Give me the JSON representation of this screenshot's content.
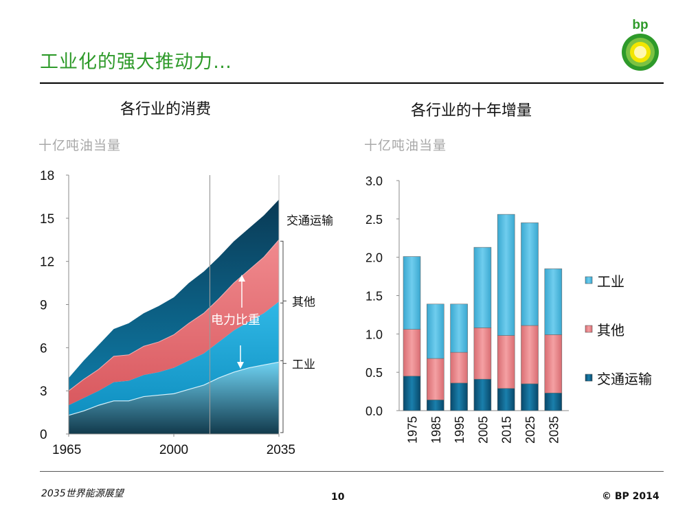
{
  "slide": {
    "title": "工业化的强大推动力…",
    "logo_text": "bp",
    "footer_left": "2035世界能源展望",
    "page_number": "10",
    "copyright": "© BP 2014"
  },
  "colors": {
    "title_green": "#2e9a2a",
    "industry": "#5bc4e8",
    "other": "#e37b80",
    "transport": "#0d5f82"
  },
  "chart_data": [
    {
      "type": "area",
      "stacked": true,
      "title": "各行业的消费",
      "ylabel": "十亿吨油当量",
      "x": [
        1965,
        1970,
        1975,
        1980,
        1985,
        1990,
        1995,
        2000,
        2005,
        2010,
        2015,
        2020,
        2025,
        2030,
        2035
      ],
      "xticks": [
        "1965",
        "2000",
        "2035"
      ],
      "xtick_values": [
        1965,
        2000,
        2035
      ],
      "yticks": [
        "0",
        "3",
        "6",
        "9",
        "12",
        "15",
        "18"
      ],
      "ylim": [
        0,
        18
      ],
      "divider_year": 2012,
      "series": [
        {
          "name": "工业",
          "values": [
            1.3,
            1.6,
            2.0,
            2.3,
            2.3,
            2.6,
            2.7,
            2.8,
            3.1,
            3.4,
            3.9,
            4.3,
            4.6,
            4.8,
            5.0
          ]
        },
        {
          "name": "电力比重",
          "values": [
            0.7,
            0.9,
            1.0,
            1.3,
            1.4,
            1.5,
            1.6,
            1.8,
            2.0,
            2.2,
            2.5,
            2.9,
            3.2,
            3.6,
            4.2
          ]
        },
        {
          "name": "其他",
          "values": [
            1.0,
            1.3,
            1.5,
            1.8,
            1.8,
            2.0,
            2.1,
            2.3,
            2.6,
            2.8,
            3.0,
            3.3,
            3.6,
            3.9,
            4.3
          ]
        },
        {
          "name": "交通运输",
          "values": [
            0.9,
            1.3,
            1.7,
            1.9,
            2.2,
            2.3,
            2.5,
            2.6,
            2.8,
            2.9,
            2.9,
            2.9,
            2.9,
            2.9,
            2.8
          ]
        }
      ],
      "right_labels": [
        "交通运输",
        "其他",
        "工业"
      ],
      "annotation": "电力比重"
    },
    {
      "type": "bar",
      "stacked": true,
      "title": "各行业的十年增量",
      "ylabel": "十亿吨油当量",
      "categories": [
        "1975",
        "1985",
        "1995",
        "2005",
        "2015",
        "2025",
        "2035"
      ],
      "yticks": [
        "0.0",
        "0.5",
        "1.0",
        "1.5",
        "2.0",
        "2.5",
        "3.0"
      ],
      "ylim": [
        0,
        3.0
      ],
      "series": [
        {
          "name": "交通运输",
          "values": [
            0.45,
            0.14,
            0.36,
            0.41,
            0.29,
            0.35,
            0.23
          ]
        },
        {
          "name": "其他",
          "values": [
            0.61,
            0.54,
            0.4,
            0.67,
            0.69,
            0.76,
            0.76
          ]
        },
        {
          "name": "工业",
          "values": [
            0.95,
            0.71,
            0.63,
            1.05,
            1.58,
            1.34,
            0.86
          ]
        }
      ],
      "legend": [
        "工业",
        "其他",
        "交通运输"
      ]
    }
  ]
}
